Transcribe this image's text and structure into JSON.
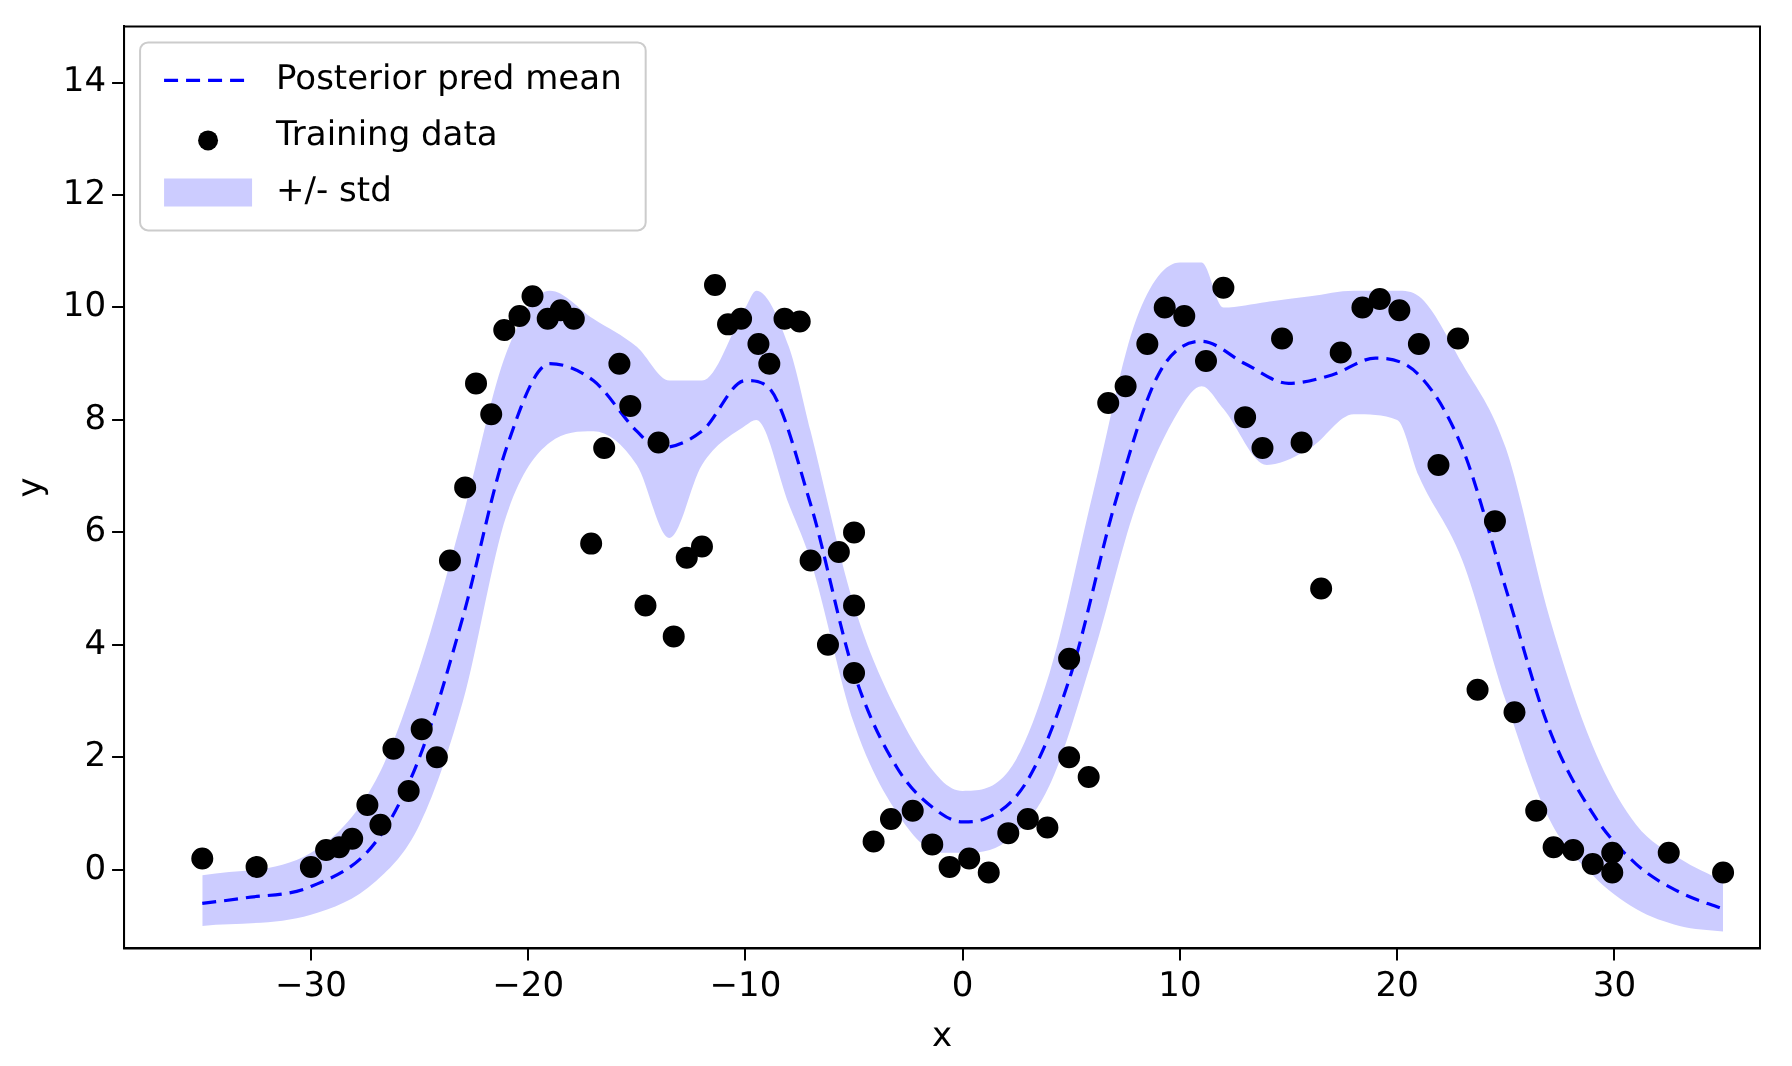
{
  "chart_data": {
    "type": "line",
    "xlabel": "x",
    "ylabel": "y",
    "xlim": [
      -38.6,
      36.7
    ],
    "ylim": [
      -1.4,
      15
    ],
    "xticks": [
      -30,
      -20,
      -10,
      0,
      10,
      20,
      30
    ],
    "yticks": [
      0,
      2,
      4,
      6,
      8,
      10,
      12,
      14
    ],
    "grid": false,
    "legend": "top left",
    "series": [
      {
        "type": "line",
        "name": "Posterior pred mean",
        "color": "#0000ff",
        "line_style": "dashed",
        "marker": "none",
        "x": [
          -35,
          -33,
          -30,
          -27,
          -25,
          -23,
          -21,
          -19,
          -17,
          -15,
          -14,
          -12,
          -10,
          -9,
          -7,
          -5,
          -3,
          -1,
          0,
          1,
          3,
          5,
          7,
          9,
          11,
          13,
          15,
          17,
          19,
          21,
          23,
          25,
          27,
          29,
          31,
          33,
          35
        ],
        "values": [
          -0.6,
          -0.5,
          -0.3,
          0.5,
          2,
          4.5,
          7.5,
          9.0,
          8.7,
          7.8,
          7.5,
          7.8,
          8.7,
          8.6,
          6.5,
          3.5,
          1.8,
          1.0,
          0.85,
          0.9,
          1.6,
          3.5,
          6.5,
          8.8,
          9.4,
          9.0,
          8.65,
          8.8,
          9.1,
          8.8,
          7.5,
          5.0,
          2.5,
          1.0,
          0.1,
          -0.4,
          -0.7
        ]
      },
      {
        "type": "scatter",
        "name": "Training data",
        "color": "#000000",
        "marker": "circle",
        "x": [
          -35.0,
          -32.5,
          -30,
          -29.3,
          -28.7,
          -28.1,
          -27.4,
          -26.8,
          -26.2,
          -25.5,
          -24.9,
          -24.2,
          -23.6,
          -22.9,
          -22.4,
          -21.7,
          -21.1,
          -20.4,
          -19.8,
          -19.1,
          -18.5,
          -17.9,
          -17.1,
          -16.5,
          -15.8,
          -15.3,
          -14.6,
          -14.0,
          -13.3,
          -12.7,
          -12.0,
          -11.4,
          -10.8,
          -10.2,
          -9.4,
          -8.9,
          -8.2,
          -7.5,
          -7.0,
          -6.2,
          -5.7,
          -5.0,
          -5.0,
          -5.0,
          -4.1,
          -3.3,
          -2.3,
          -1.4,
          -0.6,
          0.3,
          1.2,
          2.1,
          3.0,
          3.9,
          4.9,
          4.9,
          5.8,
          6.7,
          7.5,
          8.5,
          9.3,
          10.2,
          11.2,
          12.0,
          13.0,
          13.8,
          14.7,
          15.6,
          16.5,
          17.4,
          18.4,
          19.2,
          20.1,
          21.0,
          21.9,
          22.8,
          23.7,
          24.5,
          25.4,
          26.4,
          27.2,
          28.1,
          29.0,
          29.9,
          29.9,
          32.5,
          35.0
        ],
        "values": [
          0.2,
          0.05,
          0.05,
          0.35,
          0.4,
          0.55,
          1.15,
          0.8,
          2.15,
          1.4,
          2.5,
          2.0,
          5.5,
          6.8,
          8.65,
          8.1,
          9.6,
          9.85,
          10.2,
          9.8,
          9.95,
          9.8,
          5.8,
          7.5,
          9.0,
          8.25,
          4.7,
          7.6,
          4.15,
          5.55,
          5.75,
          10.4,
          9.7,
          9.8,
          9.35,
          9.0,
          9.8,
          9.75,
          5.5,
          4.0,
          5.65,
          6.0,
          4.7,
          3.5,
          0.5,
          0.9,
          1.05,
          0.45,
          0.05,
          0.2,
          -0.05,
          0.65,
          0.9,
          0.75,
          3.75,
          2.0,
          1.65,
          8.3,
          8.6,
          9.35,
          10.0,
          9.85,
          9.05,
          10.35,
          8.05,
          7.5,
          9.45,
          7.6,
          5.0,
          9.2,
          10.0,
          10.15,
          9.95,
          9.35,
          7.2,
          9.45,
          3.2,
          6.2,
          2.8,
          1.05,
          0.4,
          0.35,
          0.1,
          0.3,
          -0.05,
          0.3,
          -0.05
        ]
      },
      {
        "type": "area",
        "name": "+/- std",
        "color": "#ccccff",
        "x": [
          -35,
          -30,
          -27,
          -25,
          -23,
          -21,
          -19,
          -17,
          -15,
          -13.5,
          -12,
          -10,
          -9.5,
          -8,
          -7,
          -5,
          -3,
          -1,
          0,
          2,
          4,
          6,
          8,
          10,
          11,
          12,
          14,
          16,
          18,
          20,
          21,
          23,
          25,
          27,
          29,
          31,
          33,
          35
        ],
        "values": [
          null,
          null,
          null,
          null,
          null,
          null,
          null,
          null,
          null,
          null,
          null,
          null,
          null,
          null,
          null,
          null,
          null,
          null,
          null,
          null,
          null,
          null,
          null,
          null,
          null,
          null,
          null,
          null,
          null,
          null,
          null,
          null,
          null,
          null,
          null,
          null,
          null,
          null
        ],
        "lower": [
          -1.0,
          -0.8,
          -0.2,
          0.8,
          3.0,
          6.3,
          7.6,
          7.8,
          7.2,
          5.9,
          7.2,
          7.9,
          8.0,
          6.5,
          5.5,
          2.6,
          1.0,
          0.3,
          0.3,
          0.5,
          1.5,
          3.8,
          6.5,
          8.2,
          8.6,
          8.2,
          7.2,
          7.5,
          8.1,
          8.0,
          7.0,
          5.5,
          3.0,
          0.9,
          -0.1,
          -0.7,
          -1.0,
          -1.1
        ],
        "upper": [
          -0.1,
          0.3,
          1.6,
          3.6,
          6.3,
          9.2,
          10.3,
          9.8,
          9.3,
          8.7,
          8.7,
          10.0,
          10.3,
          9.3,
          7.8,
          4.7,
          2.8,
          1.6,
          1.4,
          1.7,
          3.5,
          6.7,
          9.8,
          10.8,
          10.8,
          10.0,
          10.1,
          10.2,
          10.3,
          10.3,
          10.2,
          9.0,
          7.5,
          4.5,
          2.2,
          0.8,
          0.2,
          -0.2
        ]
      }
    ]
  }
}
